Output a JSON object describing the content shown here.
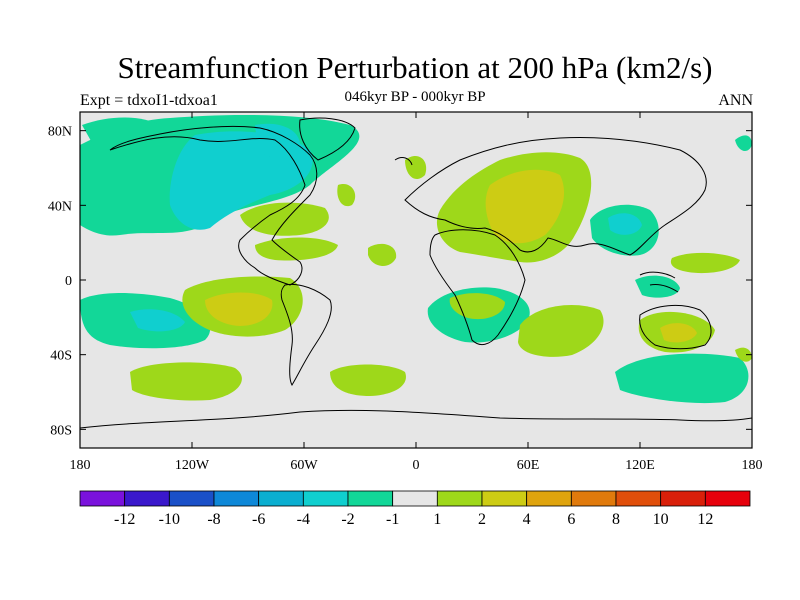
{
  "figure": {
    "title": "Streamfunction Perturbation at 200 hPa (km2/s)",
    "subtitle": "046kyr BP - 000kyr BP",
    "left_label": "Expt = tdxoI1-tdxoa1",
    "right_label": "ANN"
  },
  "chart_data": {
    "type": "heatmap",
    "projection": "cylindrical-equidistant",
    "lon_range": [
      -180,
      180
    ],
    "lat_range": [
      -90,
      90
    ],
    "x_ticks": [
      "180",
      "120W",
      "60W",
      "0",
      "60E",
      "120E",
      "180"
    ],
    "y_ticks": [
      "80N",
      "40N",
      "0",
      "40S",
      "80S"
    ],
    "colorbar": {
      "labels": [
        "-12",
        "-10",
        "-8",
        "-6",
        "-4",
        "-2",
        "-1",
        "1",
        "2",
        "4",
        "6",
        "8",
        "10",
        "12"
      ],
      "colors": [
        "#7a12dc",
        "#3a18cc",
        "#1a50c8",
        "#0e88d8",
        "#0aaed0",
        "#10cfcf",
        "#12d798",
        "#e6e6e6",
        "#9ed81a",
        "#cdcc14",
        "#dfa40e",
        "#e07a0c",
        "#e04e0a",
        "#d9200a",
        "#e6000c"
      ]
    },
    "background_color": "#e6e6e6",
    "regions": [
      {
        "name": "north-america-arctic-low",
        "level": "-2 to -4",
        "color": "#12d798",
        "lon": -105,
        "lat": 55
      },
      {
        "name": "north-america-core-low",
        "level": "-4 to -6",
        "color": "#10cfcf",
        "lon": -90,
        "lat": 55
      },
      {
        "name": "north-pacific-low",
        "level": "-2",
        "color": "#12d798",
        "lon": -165,
        "lat": 30
      },
      {
        "name": "south-pacific-high",
        "level": "2",
        "color": "#9ed81a",
        "lon": -100,
        "lat": -15
      },
      {
        "name": "south-pacific-high-core",
        "level": "4",
        "color": "#cdcc14",
        "lon": -95,
        "lat": -15
      },
      {
        "name": "south-pacific-low",
        "level": "-2 to -4",
        "color": "#12d798",
        "lon": -150,
        "lat": -20
      },
      {
        "name": "eurasia-high",
        "level": "2",
        "color": "#9ed81a",
        "lon": 55,
        "lat": 40
      },
      {
        "name": "eurasia-high-core",
        "level": "4",
        "color": "#cdcc14",
        "lon": 60,
        "lat": 40
      },
      {
        "name": "east-asia-low",
        "level": "-2 to -4",
        "color": "#12d798",
        "lon": 115,
        "lat": 30
      },
      {
        "name": "australia-high",
        "level": "2 to 4",
        "color": "#9ed81a",
        "lon": 140,
        "lat": -30
      },
      {
        "name": "south-pacific-midlat-low",
        "level": "-2",
        "color": "#12d798",
        "lon": 155,
        "lat": -53
      },
      {
        "name": "southern-ocean-high",
        "level": "2",
        "color": "#9ed81a",
        "lon": -170,
        "lat": -52
      },
      {
        "name": "south-atlantic-high",
        "level": "2",
        "color": "#9ed81a",
        "lon": -25,
        "lat": -55
      },
      {
        "name": "south-indian-high",
        "level": "2",
        "color": "#9ed81a",
        "lon": 60,
        "lat": -25
      },
      {
        "name": "southern-africa-low",
        "level": "-2",
        "color": "#12d798",
        "lon": 25,
        "lat": -20
      }
    ]
  }
}
